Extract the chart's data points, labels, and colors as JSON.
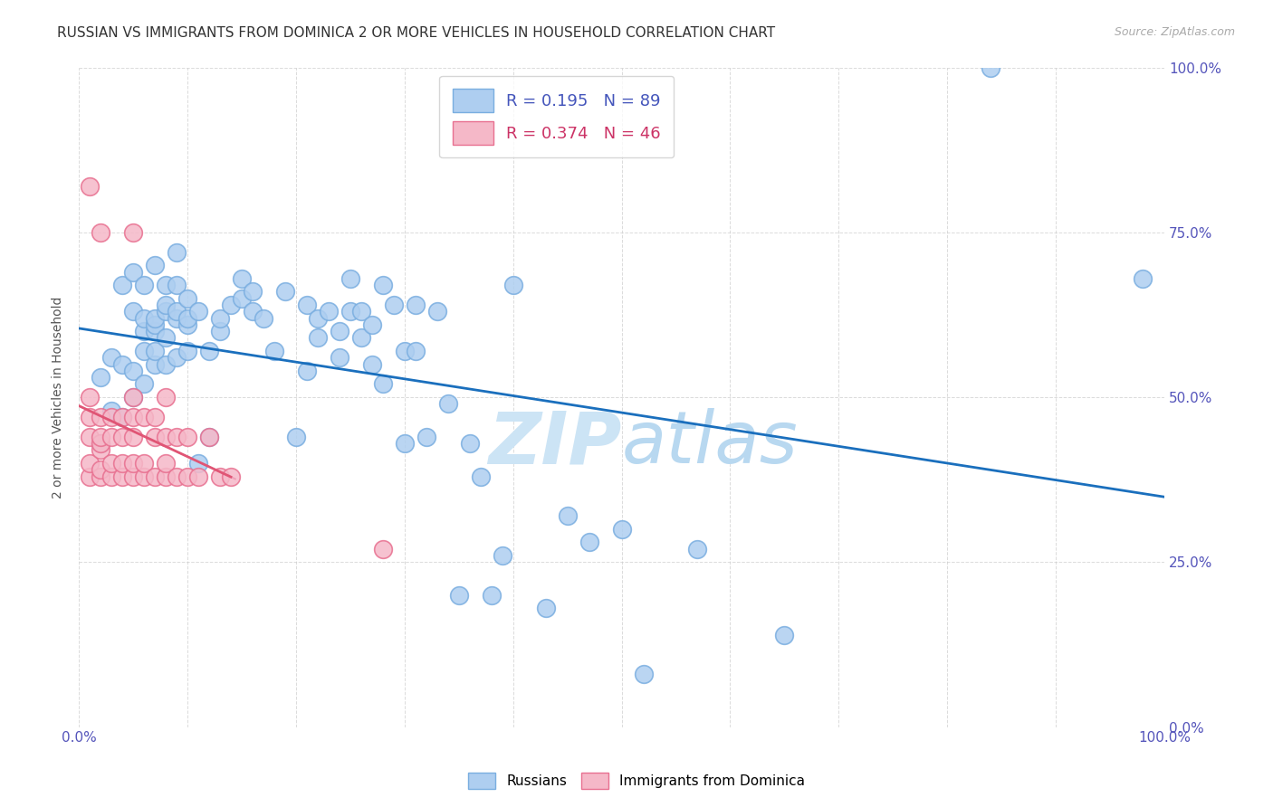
{
  "title": "RUSSIAN VS IMMIGRANTS FROM DOMINICA 2 OR MORE VEHICLES IN HOUSEHOLD CORRELATION CHART",
  "source": "Source: ZipAtlas.com",
  "ylabel": "2 or more Vehicles in Household",
  "ytick_labels": [
    "0.0%",
    "25.0%",
    "50.0%",
    "75.0%",
    "100.0%"
  ],
  "ytick_positions": [
    0,
    25,
    50,
    75,
    100
  ],
  "xtick_labels_show": [
    "0.0%",
    "100.0%"
  ],
  "xtick_positions": [
    0,
    10,
    20,
    30,
    40,
    50,
    60,
    70,
    80,
    90,
    100
  ],
  "legend_labels": [
    "Russians",
    "Immigrants from Dominica"
  ],
  "russian_color": "#aecef0",
  "russian_edge": "#7aaee0",
  "dominica_color": "#f5b8c8",
  "dominica_edge": "#e87090",
  "trendline_russian_color": "#1a6fbd",
  "trendline_dominica_color": "#e05575",
  "trendline_dominica_dashed_color": "#f0a0b8",
  "title_fontsize": 11,
  "title_color": "#333333",
  "source_color": "#aaaaaa",
  "background_color": "#ffffff",
  "grid_color": "#cccccc",
  "axis_label_color": "#5555bb",
  "russians_x": [
    2,
    2,
    3,
    3,
    4,
    4,
    4,
    5,
    5,
    5,
    5,
    6,
    6,
    6,
    6,
    6,
    7,
    7,
    7,
    7,
    7,
    7,
    8,
    8,
    8,
    8,
    8,
    9,
    9,
    9,
    9,
    9,
    10,
    10,
    10,
    10,
    11,
    11,
    12,
    12,
    13,
    13,
    14,
    15,
    15,
    16,
    16,
    17,
    18,
    19,
    20,
    21,
    21,
    22,
    22,
    23,
    24,
    24,
    25,
    25,
    26,
    26,
    27,
    27,
    28,
    28,
    29,
    30,
    30,
    31,
    31,
    32,
    33,
    34,
    35,
    36,
    37,
    38,
    39,
    40,
    43,
    45,
    47,
    50,
    52,
    57,
    65,
    84,
    98
  ],
  "russians_y": [
    43,
    53,
    48,
    56,
    47,
    55,
    67,
    50,
    54,
    63,
    69,
    52,
    57,
    60,
    62,
    67,
    55,
    57,
    60,
    61,
    62,
    70,
    55,
    59,
    63,
    64,
    67,
    56,
    62,
    63,
    67,
    72,
    57,
    61,
    62,
    65,
    40,
    63,
    44,
    57,
    60,
    62,
    64,
    65,
    68,
    63,
    66,
    62,
    57,
    66,
    44,
    64,
    54,
    62,
    59,
    63,
    60,
    56,
    63,
    68,
    59,
    63,
    55,
    61,
    52,
    67,
    64,
    43,
    57,
    57,
    64,
    44,
    63,
    49,
    20,
    43,
    38,
    20,
    26,
    67,
    18,
    32,
    28,
    30,
    8,
    27,
    14,
    100,
    68
  ],
  "dominica_x": [
    1,
    1,
    1,
    1,
    1,
    1,
    2,
    2,
    2,
    2,
    2,
    2,
    2,
    3,
    3,
    3,
    3,
    4,
    4,
    4,
    4,
    5,
    5,
    5,
    5,
    5,
    5,
    6,
    6,
    6,
    7,
    7,
    7,
    8,
    8,
    8,
    8,
    9,
    9,
    10,
    10,
    11,
    12,
    13,
    14,
    28
  ],
  "dominica_y": [
    38,
    40,
    44,
    47,
    50,
    82,
    38,
    39,
    42,
    43,
    44,
    47,
    75,
    38,
    40,
    44,
    47,
    38,
    40,
    44,
    47,
    38,
    40,
    44,
    47,
    50,
    75,
    38,
    40,
    47,
    38,
    44,
    47,
    38,
    40,
    44,
    50,
    38,
    44,
    38,
    44,
    38,
    44,
    38,
    38,
    27
  ]
}
